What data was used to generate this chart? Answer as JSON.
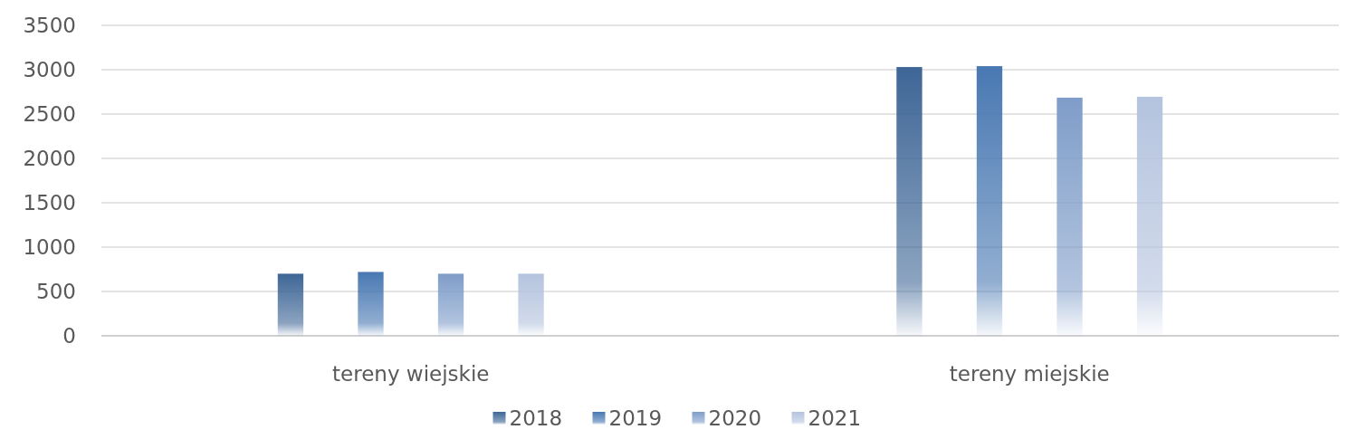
{
  "chart_data": {
    "type": "bar",
    "categories": [
      "tereny wiejskie",
      "tereny miejskie"
    ],
    "series": [
      {
        "name": "2018",
        "color": "#3e6696",
        "values": [
          700,
          3030
        ]
      },
      {
        "name": "2019",
        "color": "#4878b2",
        "values": [
          720,
          3040
        ]
      },
      {
        "name": "2020",
        "color": "#7f9dc9",
        "values": [
          700,
          2685
        ]
      },
      {
        "name": "2021",
        "color": "#b4c3de",
        "values": [
          700,
          2695
        ]
      }
    ],
    "ylim": [
      0,
      3500
    ],
    "yticks": [
      0,
      500,
      1000,
      1500,
      2000,
      2500,
      3000,
      3500
    ],
    "grid": "y",
    "legend": "bottom"
  }
}
